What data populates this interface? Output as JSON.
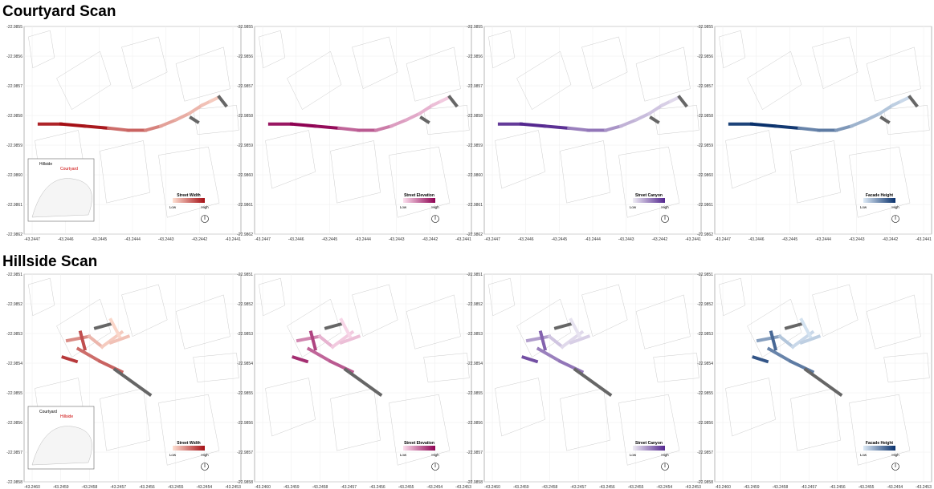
{
  "sections": [
    {
      "title": "Courtyard Scan",
      "y_ticks": [
        "-22.9855",
        "-22.9856",
        "-22.9857",
        "-22.9858",
        "-22.9859",
        "-22.9860",
        "-22.9861",
        "-22.9862"
      ],
      "x_ticks": [
        "-43.2447",
        "-43.2446",
        "-43.2445",
        "-43.2444",
        "-43.2443",
        "-43.2442",
        "-43.2441"
      ],
      "inset": {
        "highlighted": "Courtyard",
        "other": "Hillside"
      }
    },
    {
      "title": "Hillside Scan",
      "y_ticks": [
        "-22.9851",
        "-22.9852",
        "-22.9853",
        "-22.9854",
        "-22.9855",
        "-22.9856",
        "-22.9857",
        "-22.9858"
      ],
      "x_ticks": [
        "-43.2460",
        "-43.2459",
        "-43.2458",
        "-43.2457",
        "-43.2456",
        "-43.2455",
        "-43.2454",
        "-43.2453"
      ],
      "inset": {
        "highlighted": "Hillside",
        "other": "Courtyard"
      }
    }
  ],
  "metrics": [
    {
      "name": "Street Width",
      "low": "#fee0d2",
      "high": "#a50f15"
    },
    {
      "name": "Street Elevation",
      "low": "#fde0ef",
      "high": "#8e0152"
    },
    {
      "name": "Street Canyon",
      "low": "#efedf5",
      "high": "#54278f"
    },
    {
      "name": "Facade Height",
      "low": "#deebf7",
      "high": "#08306b"
    }
  ],
  "legend": {
    "low": "Low",
    "high": "High"
  },
  "colors": {
    "missing": "#666666",
    "inset_highlight": "#cc0000"
  }
}
